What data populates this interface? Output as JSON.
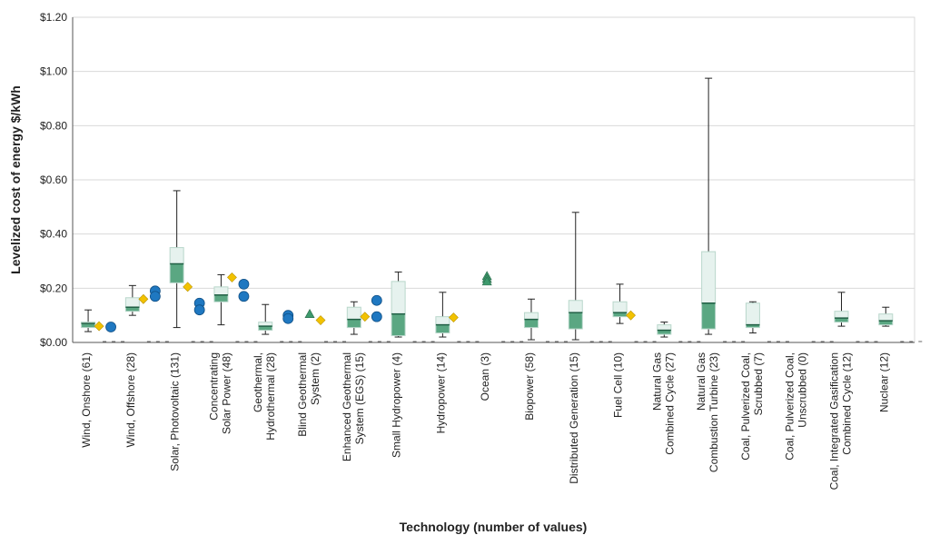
{
  "chart_data": {
    "type": "box",
    "title": "",
    "ylabel": "Levelized cost of energy $/kWh",
    "xlabel": "Technology (number of values)",
    "ylim": [
      0,
      1.2
    ],
    "yticks": [
      "$0.00",
      "$0.20",
      "$0.40",
      "$0.60",
      "$0.80",
      "$1.00",
      "$1.20"
    ],
    "ytick_values": [
      0,
      0.2,
      0.4,
      0.6,
      0.8,
      1.0,
      1.2
    ],
    "grid": true,
    "colors": {
      "box_upper": "#e6f2ee",
      "box_lower": "#5aa782",
      "box_edge": "#b9d7cb",
      "diamond": "#f2c200",
      "circle": "#1f78c1",
      "triangle": "#3e9a6d",
      "axis": "#555555",
      "grid": "#d9d9d9"
    },
    "categories": [
      {
        "label": [
          "Wind, Onshore (61)"
        ],
        "min": 0.04,
        "q1": 0.055,
        "median": 0.07,
        "q3": 0.075,
        "max": 0.12,
        "diamonds": [
          0.06
        ],
        "circles": [
          0.057
        ]
      },
      {
        "label": [
          "Wind, Offshore (28)"
        ],
        "min": 0.1,
        "q1": 0.115,
        "median": 0.13,
        "q3": 0.165,
        "max": 0.21,
        "diamonds": [
          0.16
        ],
        "circles": [
          0.19,
          0.17
        ]
      },
      {
        "label": [
          "Solar, Photovoltaic (131)"
        ],
        "min": 0.055,
        "q1": 0.22,
        "median": 0.29,
        "q3": 0.35,
        "max": 0.56,
        "diamonds": [
          0.205
        ],
        "circles": [
          0.145,
          0.12
        ]
      },
      {
        "label": [
          "Concentrating",
          "Solar Power (48)"
        ],
        "min": 0.065,
        "q1": 0.15,
        "median": 0.175,
        "q3": 0.205,
        "max": 0.25,
        "diamonds": [
          0.24
        ],
        "circles": [
          0.215,
          0.17
        ]
      },
      {
        "label": [
          "Geothermal,",
          "Hydrothermal (28)"
        ],
        "min": 0.03,
        "q1": 0.045,
        "median": 0.06,
        "q3": 0.075,
        "max": 0.14,
        "diamonds": [],
        "circles": [
          0.1,
          0.088
        ]
      },
      {
        "label": [
          "Blind Geothermal",
          "System (2)"
        ],
        "min": null,
        "q1": null,
        "median": null,
        "q3": null,
        "max": null,
        "diamonds": [
          0.082
        ],
        "circles": [],
        "triangles": [
          0.105
        ]
      },
      {
        "label": [
          "Enhanced Geothermal",
          "System (EGS) (15)"
        ],
        "min": 0.03,
        "q1": 0.055,
        "median": 0.085,
        "q3": 0.13,
        "max": 0.15,
        "diamonds": [
          0.095
        ],
        "circles": [
          0.155,
          0.095
        ]
      },
      {
        "label": [
          "Small Hydropower (4)"
        ],
        "min": 0.02,
        "q1": 0.025,
        "median": 0.105,
        "q3": 0.225,
        "max": 0.26,
        "diamonds": [],
        "circles": []
      },
      {
        "label": [
          "Hydropower (14)"
        ],
        "min": 0.02,
        "q1": 0.035,
        "median": 0.065,
        "q3": 0.095,
        "max": 0.185,
        "diamonds": [
          0.092
        ],
        "circles": []
      },
      {
        "label": [
          "Ocean (3)"
        ],
        "min": null,
        "q1": null,
        "median": null,
        "q3": null,
        "max": null,
        "diamonds": [],
        "circles": [],
        "triangles": [
          0.245,
          0.235,
          0.225
        ]
      },
      {
        "label": [
          "Biopower (58)"
        ],
        "min": 0.01,
        "q1": 0.055,
        "median": 0.085,
        "q3": 0.11,
        "max": 0.16,
        "diamonds": [],
        "circles": []
      },
      {
        "label": [
          "Distributed Generation (15)"
        ],
        "min": 0.01,
        "q1": 0.05,
        "median": 0.11,
        "q3": 0.155,
        "max": 0.48,
        "diamonds": [],
        "circles": []
      },
      {
        "label": [
          "Fuel Cell (10)"
        ],
        "min": 0.07,
        "q1": 0.095,
        "median": 0.11,
        "q3": 0.15,
        "max": 0.215,
        "diamonds": [
          0.1
        ],
        "circles": []
      },
      {
        "label": [
          "Natural Gas",
          "Combined Cycle (27)"
        ],
        "min": 0.02,
        "q1": 0.03,
        "median": 0.045,
        "q3": 0.065,
        "max": 0.075,
        "diamonds": [],
        "circles": []
      },
      {
        "label": [
          "Natural Gas",
          "Combustion Turbine (23)"
        ],
        "min": 0.03,
        "q1": 0.05,
        "median": 0.145,
        "q3": 0.335,
        "max": 0.975,
        "diamonds": [],
        "circles": []
      },
      {
        "label": [
          "Coal, Pulverized Coal,",
          "Scrubbed (7)"
        ],
        "min": 0.035,
        "q1": 0.055,
        "median": 0.065,
        "q3": 0.145,
        "max": 0.15,
        "diamonds": [],
        "circles": []
      },
      {
        "label": [
          "Coal, Pulverized Coal,",
          "Unscrubbed (0)"
        ],
        "min": null,
        "q1": null,
        "median": null,
        "q3": null,
        "max": null,
        "diamonds": [],
        "circles": []
      },
      {
        "label": [
          "Coal, Integrated Gasification",
          "Combined Cycle (12)"
        ],
        "min": 0.06,
        "q1": 0.075,
        "median": 0.09,
        "q3": 0.115,
        "max": 0.185,
        "diamonds": [],
        "circles": []
      },
      {
        "label": [
          "Nuclear (12)"
        ],
        "min": 0.06,
        "q1": 0.065,
        "median": 0.08,
        "q3": 0.105,
        "max": 0.13,
        "diamonds": [],
        "circles": []
      }
    ]
  }
}
